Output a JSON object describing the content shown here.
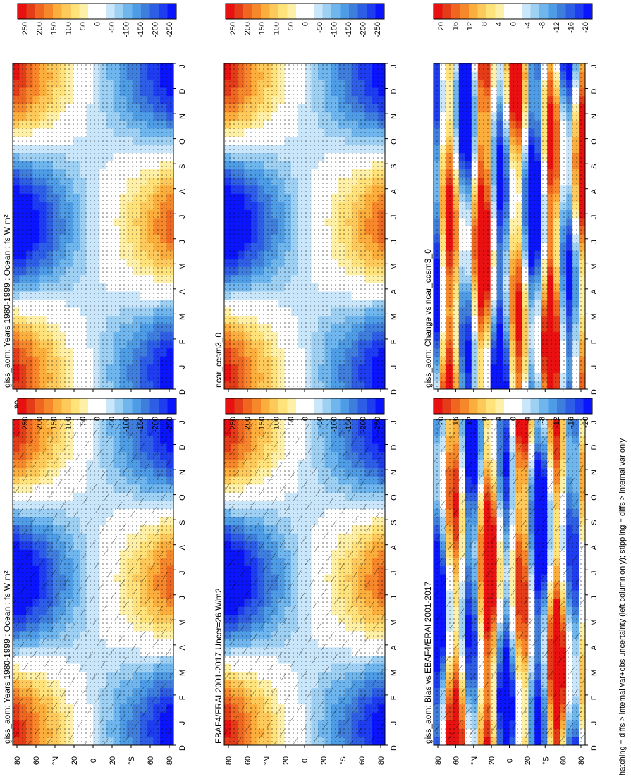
{
  "figure": {
    "footnote": "hatching = diffs > internal var+obs uncertainty (left column only); stippling = diffs > internal var only",
    "colors": {
      "full_field": [
        "#0a14ff",
        "#1e3cf0",
        "#2e5ee6",
        "#3f7edc",
        "#4f9ce6",
        "#6fb6ee",
        "#9ed0f4",
        "#c9e6fa",
        "#ffffff",
        "#ffffff",
        "#fff0a8",
        "#ffe27a",
        "#fdc95a",
        "#fbae3c",
        "#f6872a",
        "#ef6620",
        "#e43c18",
        "#e81010"
      ],
      "diff_field": [
        "#0a14ff",
        "#1e3cf0",
        "#2e5ee6",
        "#3f7edc",
        "#4f9ce6",
        "#6fb6ee",
        "#9ed0f4",
        "#c9e6fa",
        "#ffffff",
        "#ffffff",
        "#fff0a8",
        "#ffe27a",
        "#fdc95a",
        "#fbae3c",
        "#f6872a",
        "#ef6620",
        "#e43c18",
        "#e81010"
      ]
    }
  },
  "colorbars": {
    "full_field_ticks": [
      "250",
      "200",
      "150",
      "100",
      "50",
      "0",
      "-50",
      "-100",
      "-150",
      "-200",
      "-250"
    ],
    "diff_field_ticks": [
      "20",
      "16",
      "12",
      "8",
      "4",
      "0",
      "-4",
      "-8",
      "-12",
      "-16",
      "-20"
    ]
  },
  "axis_ticks": {
    "months": [
      "D",
      "J",
      "F",
      "M",
      "A",
      "M",
      "J",
      "J",
      "A",
      "S",
      "O",
      "N",
      "D",
      "J"
    ],
    "latitudes": [
      "80",
      "60",
      "°N",
      "20",
      "0",
      "20",
      "°S",
      "60",
      "80"
    ]
  },
  "chart_data": [
    {
      "id": "left-top",
      "type": "heatmap",
      "title": "giss_aom: Years 1980-1999 : Ocean : fs W m²",
      "x": "month (D→J, 14 months)",
      "y": "latitude (80°N→80°S)",
      "zlim": [
        -250,
        250
      ],
      "stippling": true,
      "hatching": true
    },
    {
      "id": "right-top",
      "type": "heatmap",
      "title": "giss_aom: Years 1980-1999 : Ocean : fs W m²",
      "x": "month",
      "y": "latitude",
      "zlim": [
        -250,
        250
      ],
      "stippling": true,
      "hatching": false
    },
    {
      "id": "left-mid",
      "type": "heatmap",
      "title": "EBAF4/ERAI 2001-2017 Uncer=26 W/m2",
      "x": "month",
      "y": "latitude",
      "zlim": [
        -250,
        250
      ],
      "stippling": true,
      "hatching": true
    },
    {
      "id": "right-mid",
      "type": "heatmap",
      "title": "ncar_ccsm3_0",
      "x": "month",
      "y": "latitude",
      "zlim": [
        -250,
        250
      ],
      "stippling": true,
      "hatching": false
    },
    {
      "id": "left-bot",
      "type": "heatmap",
      "title": "giss_aom: Bias vs EBAF4/ERAI 2001-2017",
      "x": "month",
      "y": "latitude",
      "zlim": [
        -20,
        20
      ],
      "stippling": true,
      "hatching": true
    },
    {
      "id": "right-bot",
      "type": "heatmap",
      "title": "giss_aom: Change vs ncar_ccsm3_0",
      "x": "month",
      "y": "latitude",
      "zlim": [
        -20,
        20
      ],
      "stippling": true,
      "hatching": false
    }
  ]
}
